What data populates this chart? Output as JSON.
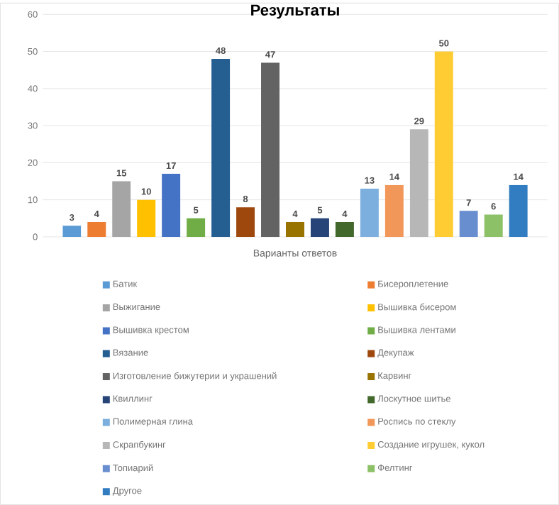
{
  "chart_data": {
    "type": "bar",
    "title": "Результаты",
    "xlabel": "Варианты ответов",
    "categories": [
      null
    ],
    "ylim": [
      0,
      60
    ],
    "yticks": [
      0,
      10,
      20,
      30,
      40,
      50,
      60
    ],
    "grid": "y",
    "legend": "bottom",
    "data_labels": true,
    "series": [
      {
        "name": "Батик",
        "color": "#5b9bd5",
        "values": [
          3
        ]
      },
      {
        "name": "Бисероплетение",
        "color": "#ed7d31",
        "values": [
          4
        ]
      },
      {
        "name": "Выжигание",
        "color": "#a5a5a5",
        "values": [
          15
        ]
      },
      {
        "name": "Вышивка бисером",
        "color": "#ffc000",
        "values": [
          10
        ]
      },
      {
        "name": "Вышивка крестом",
        "color": "#4472c4",
        "values": [
          17
        ]
      },
      {
        "name": "Вышивка лентами",
        "color": "#70ad47",
        "values": [
          5
        ]
      },
      {
        "name": "Вязание",
        "color": "#255e91",
        "values": [
          48
        ]
      },
      {
        "name": "Декупаж",
        "color": "#9e480e",
        "values": [
          8
        ]
      },
      {
        "name": "Изготовление бижутерии и украшений",
        "color": "#636363",
        "values": [
          47
        ]
      },
      {
        "name": "Карвинг",
        "color": "#997300",
        "values": [
          4
        ]
      },
      {
        "name": "Квиллинг",
        "color": "#264478",
        "values": [
          5
        ]
      },
      {
        "name": "Лоскутное шитье",
        "color": "#43682b",
        "values": [
          4
        ]
      },
      {
        "name": "Полимерная глина",
        "color": "#7cafdd",
        "values": [
          13
        ]
      },
      {
        "name": "Роспись по стеклу",
        "color": "#f1975a",
        "values": [
          14
        ]
      },
      {
        "name": "Скрапбукинг",
        "color": "#b7b7b7",
        "values": [
          29
        ]
      },
      {
        "name": "Создание игрушек, кукол",
        "color": "#ffcd33",
        "values": [
          50
        ]
      },
      {
        "name": "Топиарий",
        "color": "#698ed0",
        "values": [
          7
        ]
      },
      {
        "name": "Фелтинг",
        "color": "#8cc168",
        "values": [
          6
        ]
      },
      {
        "name": "Другое",
        "color": "#327dc2",
        "values": [
          14
        ]
      }
    ]
  }
}
